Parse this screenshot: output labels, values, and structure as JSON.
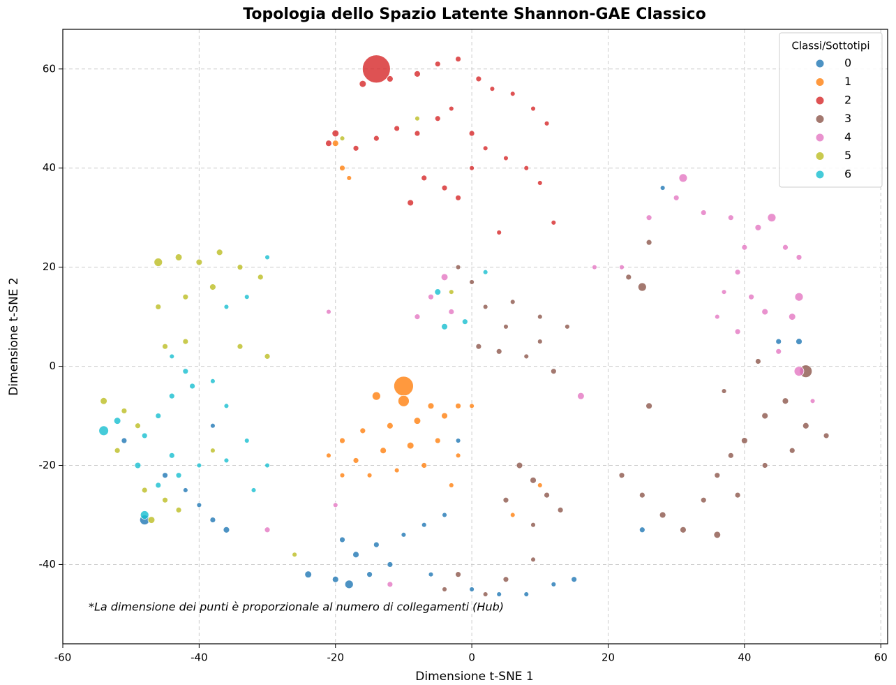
{
  "chart_data": {
    "type": "scatter",
    "title": "Topologia dello Spazio Latente Shannon-GAE Classico",
    "x_label": "Dimensione t-SNE 1",
    "y_label": "Dimensione t-SNE 2",
    "annotation": "*La dimensione dei punti è proporzionale al numero di collegamenti (Hub)",
    "legend_title": "Classi/Sottotipi",
    "legend_position": "upper right",
    "grid": true,
    "xlim": [
      -60,
      61
    ],
    "ylim": [
      -56,
      68
    ],
    "xticks": [
      -60,
      -40,
      -20,
      0,
      20,
      40,
      60
    ],
    "yticks": [
      -40,
      -20,
      0,
      20,
      40,
      60
    ],
    "series": [
      {
        "name": "0",
        "color": "#1f77b4",
        "x": [
          -18,
          -20,
          -15,
          -12,
          -17,
          -14,
          -10,
          -7,
          -4,
          -19,
          -24,
          -6,
          0,
          4,
          8,
          12,
          15,
          -36,
          -38,
          -40,
          -42,
          -45,
          -48,
          -51,
          -38,
          25,
          45,
          48,
          28,
          -2
        ],
        "y": [
          -44,
          -43,
          -42,
          -40,
          -38,
          -36,
          -34,
          -32,
          -30,
          -35,
          -42,
          -42,
          -45,
          -46,
          -46,
          -44,
          -43,
          -33,
          -31,
          -28,
          -25,
          -22,
          -31,
          -15,
          -12,
          -33,
          5,
          5,
          36,
          -15
        ],
        "sizes": [
          9,
          5,
          4,
          4,
          5,
          4,
          3,
          3,
          3,
          4,
          6,
          3,
          3,
          3,
          3,
          3,
          4,
          5,
          4,
          3,
          3,
          4,
          12,
          4,
          3,
          4,
          4,
          5,
          3,
          3
        ]
      },
      {
        "name": "1",
        "color": "#ff7f0e",
        "x": [
          -10,
          -14,
          -10,
          -6,
          -2,
          0,
          -4,
          -8,
          -12,
          -16,
          -19,
          -21,
          -17,
          -13,
          -9,
          -5,
          -2,
          -7,
          -11,
          -15,
          -19,
          -3,
          -19,
          -18,
          -20,
          6,
          10
        ],
        "y": [
          -4,
          -6,
          -7,
          -8,
          -8,
          -8,
          -10,
          -11,
          -12,
          -13,
          -15,
          -18,
          -19,
          -17,
          -16,
          -15,
          -18,
          -20,
          -21,
          -22,
          -22,
          -24,
          40,
          38,
          45,
          -30,
          -24
        ],
        "sizes": [
          49,
          9,
          16,
          5,
          4,
          3,
          5,
          6,
          5,
          4,
          4,
          3,
          4,
          5,
          6,
          4,
          3,
          4,
          3,
          3,
          3,
          3,
          4,
          3,
          5,
          3,
          3
        ]
      },
      {
        "name": "2",
        "color": "#d62728",
        "x": [
          -14,
          -16,
          -12,
          -8,
          -5,
          -2,
          1,
          3,
          6,
          9,
          11,
          -20,
          -21,
          -17,
          -14,
          -11,
          -8,
          -5,
          -3,
          0,
          2,
          5,
          8,
          -9,
          -7,
          -4,
          0,
          -2,
          10,
          12,
          4
        ],
        "y": [
          60,
          57,
          58,
          59,
          61,
          62,
          58,
          56,
          55,
          52,
          49,
          47,
          45,
          44,
          46,
          48,
          47,
          50,
          52,
          47,
          44,
          42,
          40,
          33,
          38,
          36,
          40,
          34,
          37,
          29,
          27
        ],
        "sizes": [
          100,
          6,
          5,
          5,
          4,
          4,
          4,
          3,
          3,
          3,
          3,
          6,
          5,
          4,
          4,
          4,
          4,
          4,
          3,
          4,
          3,
          3,
          3,
          5,
          4,
          4,
          3,
          4,
          3,
          3,
          3
        ]
      },
      {
        "name": "3",
        "color": "#8c564b",
        "x": [
          1,
          4,
          8,
          12,
          10,
          5,
          2,
          6,
          10,
          14,
          0,
          -2,
          7,
          9,
          11,
          13,
          5,
          9,
          23,
          25,
          22,
          25,
          28,
          31,
          34,
          36,
          38,
          40,
          43,
          46,
          49,
          52,
          47,
          43,
          39,
          36,
          49,
          42,
          37,
          26,
          -2,
          2,
          5,
          9,
          -4,
          26
        ],
        "y": [
          4,
          3,
          2,
          -1,
          5,
          8,
          12,
          13,
          10,
          8,
          17,
          20,
          -20,
          -23,
          -26,
          -29,
          -27,
          -32,
          18,
          16,
          -22,
          -26,
          -30,
          -33,
          -27,
          -22,
          -18,
          -15,
          -10,
          -7,
          -12,
          -14,
          -17,
          -20,
          -26,
          -34,
          -1,
          1,
          -5,
          -8,
          -42,
          -46,
          -43,
          -39,
          -45,
          25
        ],
        "sizes": [
          4,
          4,
          3,
          4,
          3,
          3,
          3,
          3,
          3,
          3,
          3,
          3,
          5,
          5,
          4,
          4,
          4,
          3,
          4,
          9,
          4,
          4,
          5,
          5,
          4,
          4,
          4,
          5,
          5,
          5,
          5,
          4,
          4,
          4,
          4,
          6,
          20,
          4,
          3,
          5,
          4,
          3,
          4,
          3,
          3,
          4
        ]
      },
      {
        "name": "4",
        "color": "#e377c2",
        "x": [
          22,
          26,
          30,
          31,
          34,
          38,
          42,
          44,
          46,
          48,
          40,
          39,
          41,
          37,
          36,
          39,
          43,
          48,
          47,
          45,
          48,
          50,
          -4,
          -6,
          -8,
          -3,
          16,
          18,
          -12,
          -20,
          -30,
          -21
        ],
        "y": [
          20,
          30,
          34,
          38,
          31,
          30,
          28,
          30,
          24,
          22,
          24,
          19,
          14,
          15,
          10,
          7,
          11,
          14,
          10,
          3,
          -1,
          -7,
          18,
          14,
          10,
          11,
          -6,
          20,
          -44,
          -28,
          -33,
          11
        ],
        "sizes": [
          3,
          4,
          4,
          9,
          4,
          4,
          5,
          9,
          4,
          4,
          4,
          4,
          4,
          3,
          3,
          4,
          5,
          9,
          6,
          4,
          12,
          3,
          6,
          4,
          4,
          4,
          6,
          3,
          4,
          3,
          4,
          3
        ]
      },
      {
        "name": "5",
        "color": "#bcbd22",
        "x": [
          -46,
          -43,
          -40,
          -37,
          -34,
          -31,
          -38,
          -42,
          -46,
          -45,
          -42,
          -34,
          -30,
          -54,
          -51,
          -49,
          -52,
          -48,
          -45,
          -47,
          -43,
          -38,
          -26,
          -19,
          -8,
          -3
        ],
        "y": [
          21,
          22,
          21,
          23,
          20,
          18,
          16,
          14,
          12,
          4,
          5,
          4,
          2,
          -7,
          -9,
          -12,
          -17,
          -25,
          -27,
          -31,
          -29,
          -17,
          -38,
          46,
          50,
          15
        ],
        "sizes": [
          9,
          6,
          5,
          5,
          4,
          4,
          5,
          4,
          4,
          4,
          4,
          4,
          4,
          6,
          4,
          4,
          4,
          4,
          4,
          6,
          4,
          3,
          3,
          3,
          3,
          3
        ]
      },
      {
        "name": "6",
        "color": "#17becf",
        "x": [
          -54,
          -52,
          -48,
          -46,
          -44,
          -41,
          -38,
          -44,
          -49,
          -46,
          -43,
          -40,
          -36,
          -33,
          -30,
          -32,
          -42,
          -44,
          -36,
          -33,
          -30,
          -5,
          -4,
          -1,
          2,
          -48,
          -36
        ],
        "y": [
          -13,
          -11,
          -14,
          -10,
          -6,
          -4,
          -3,
          -18,
          -20,
          -24,
          -22,
          -20,
          -19,
          -15,
          -20,
          -25,
          -1,
          2,
          12,
          14,
          22,
          15,
          8,
          9,
          19,
          -30,
          -8
        ],
        "sizes": [
          12,
          6,
          4,
          4,
          4,
          4,
          3,
          4,
          5,
          4,
          4,
          3,
          3,
          3,
          3,
          3,
          4,
          3,
          3,
          3,
          3,
          5,
          5,
          4,
          3,
          9,
          3
        ]
      }
    ]
  }
}
